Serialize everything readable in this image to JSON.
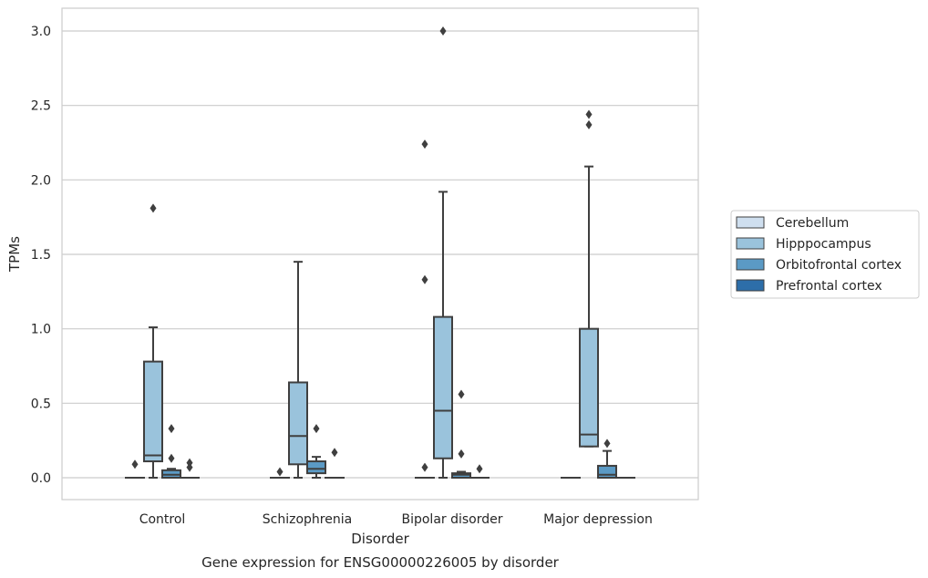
{
  "chart_data": {
    "type": "box",
    "title": "Gene expression for ENSG00000226005 by disorder",
    "xlabel": "Disorder",
    "ylabel": "TPMs",
    "ylim": [
      -0.15,
      3.15
    ],
    "yticks": [
      "0.0",
      "0.5",
      "1.0",
      "1.5",
      "2.0",
      "2.5",
      "3.0"
    ],
    "grid": "horizontal",
    "legend_position": "right",
    "categories": [
      "Control",
      "Schizophrenia",
      "Bipolar disorder",
      "Major depression"
    ],
    "series": [
      {
        "name": "Cerebellum",
        "color": "#cfdfef",
        "boxes": [
          {
            "min": 0.0,
            "q1": 0.0,
            "median": 0.0,
            "q3": 0.0,
            "max": 0.0,
            "outliers": [
              0.09
            ]
          },
          {
            "min": 0.0,
            "q1": 0.0,
            "median": 0.0,
            "q3": 0.0,
            "max": 0.0,
            "outliers": [
              0.04
            ]
          },
          {
            "min": 0.0,
            "q1": 0.0,
            "median": 0.0,
            "q3": 0.0,
            "max": 0.0,
            "outliers": [
              0.07,
              1.33,
              2.24
            ]
          },
          {
            "min": 0.0,
            "q1": 0.0,
            "median": 0.0,
            "q3": 0.0,
            "max": 0.0,
            "outliers": []
          }
        ]
      },
      {
        "name": "Hipppocampus",
        "color": "#9ac3dc",
        "boxes": [
          {
            "min": 0.0,
            "q1": 0.11,
            "median": 0.15,
            "q3": 0.78,
            "max": 1.01,
            "outliers": [
              1.81
            ]
          },
          {
            "min": 0.0,
            "q1": 0.09,
            "median": 0.28,
            "q3": 0.64,
            "max": 1.45,
            "outliers": []
          },
          {
            "min": 0.0,
            "q1": 0.13,
            "median": 0.45,
            "q3": 1.08,
            "max": 1.92,
            "outliers": [
              3.0
            ]
          },
          {
            "min": 0.21,
            "q1": 0.21,
            "median": 0.29,
            "q3": 1.0,
            "max": 2.09,
            "outliers": [
              2.37,
              2.44
            ]
          }
        ]
      },
      {
        "name": "Orbitofrontal cortex",
        "color": "#5b9ac5",
        "boxes": [
          {
            "min": 0.0,
            "q1": 0.0,
            "median": 0.02,
            "q3": 0.05,
            "max": 0.06,
            "outliers": [
              0.13,
              0.33
            ]
          },
          {
            "min": 0.0,
            "q1": 0.03,
            "median": 0.06,
            "q3": 0.11,
            "max": 0.14,
            "outliers": [
              0.33
            ]
          },
          {
            "min": 0.0,
            "q1": 0.0,
            "median": 0.02,
            "q3": 0.03,
            "max": 0.04,
            "outliers": [
              0.16,
              0.56
            ]
          },
          {
            "min": 0.0,
            "q1": 0.0,
            "median": 0.02,
            "q3": 0.08,
            "max": 0.18,
            "outliers": [
              0.23
            ]
          }
        ]
      },
      {
        "name": "Prefrontal cortex",
        "color": "#2d6ea9",
        "boxes": [
          {
            "min": 0.0,
            "q1": 0.0,
            "median": 0.0,
            "q3": 0.0,
            "max": 0.0,
            "outliers": [
              0.07,
              0.1
            ]
          },
          {
            "min": 0.0,
            "q1": 0.0,
            "median": 0.0,
            "q3": 0.0,
            "max": 0.0,
            "outliers": [
              0.17
            ]
          },
          {
            "min": 0.0,
            "q1": 0.0,
            "median": 0.0,
            "q3": 0.0,
            "max": 0.0,
            "outliers": [
              0.06
            ]
          },
          {
            "min": 0.0,
            "q1": 0.0,
            "median": 0.0,
            "q3": 0.0,
            "max": 0.0,
            "outliers": []
          }
        ]
      }
    ]
  }
}
